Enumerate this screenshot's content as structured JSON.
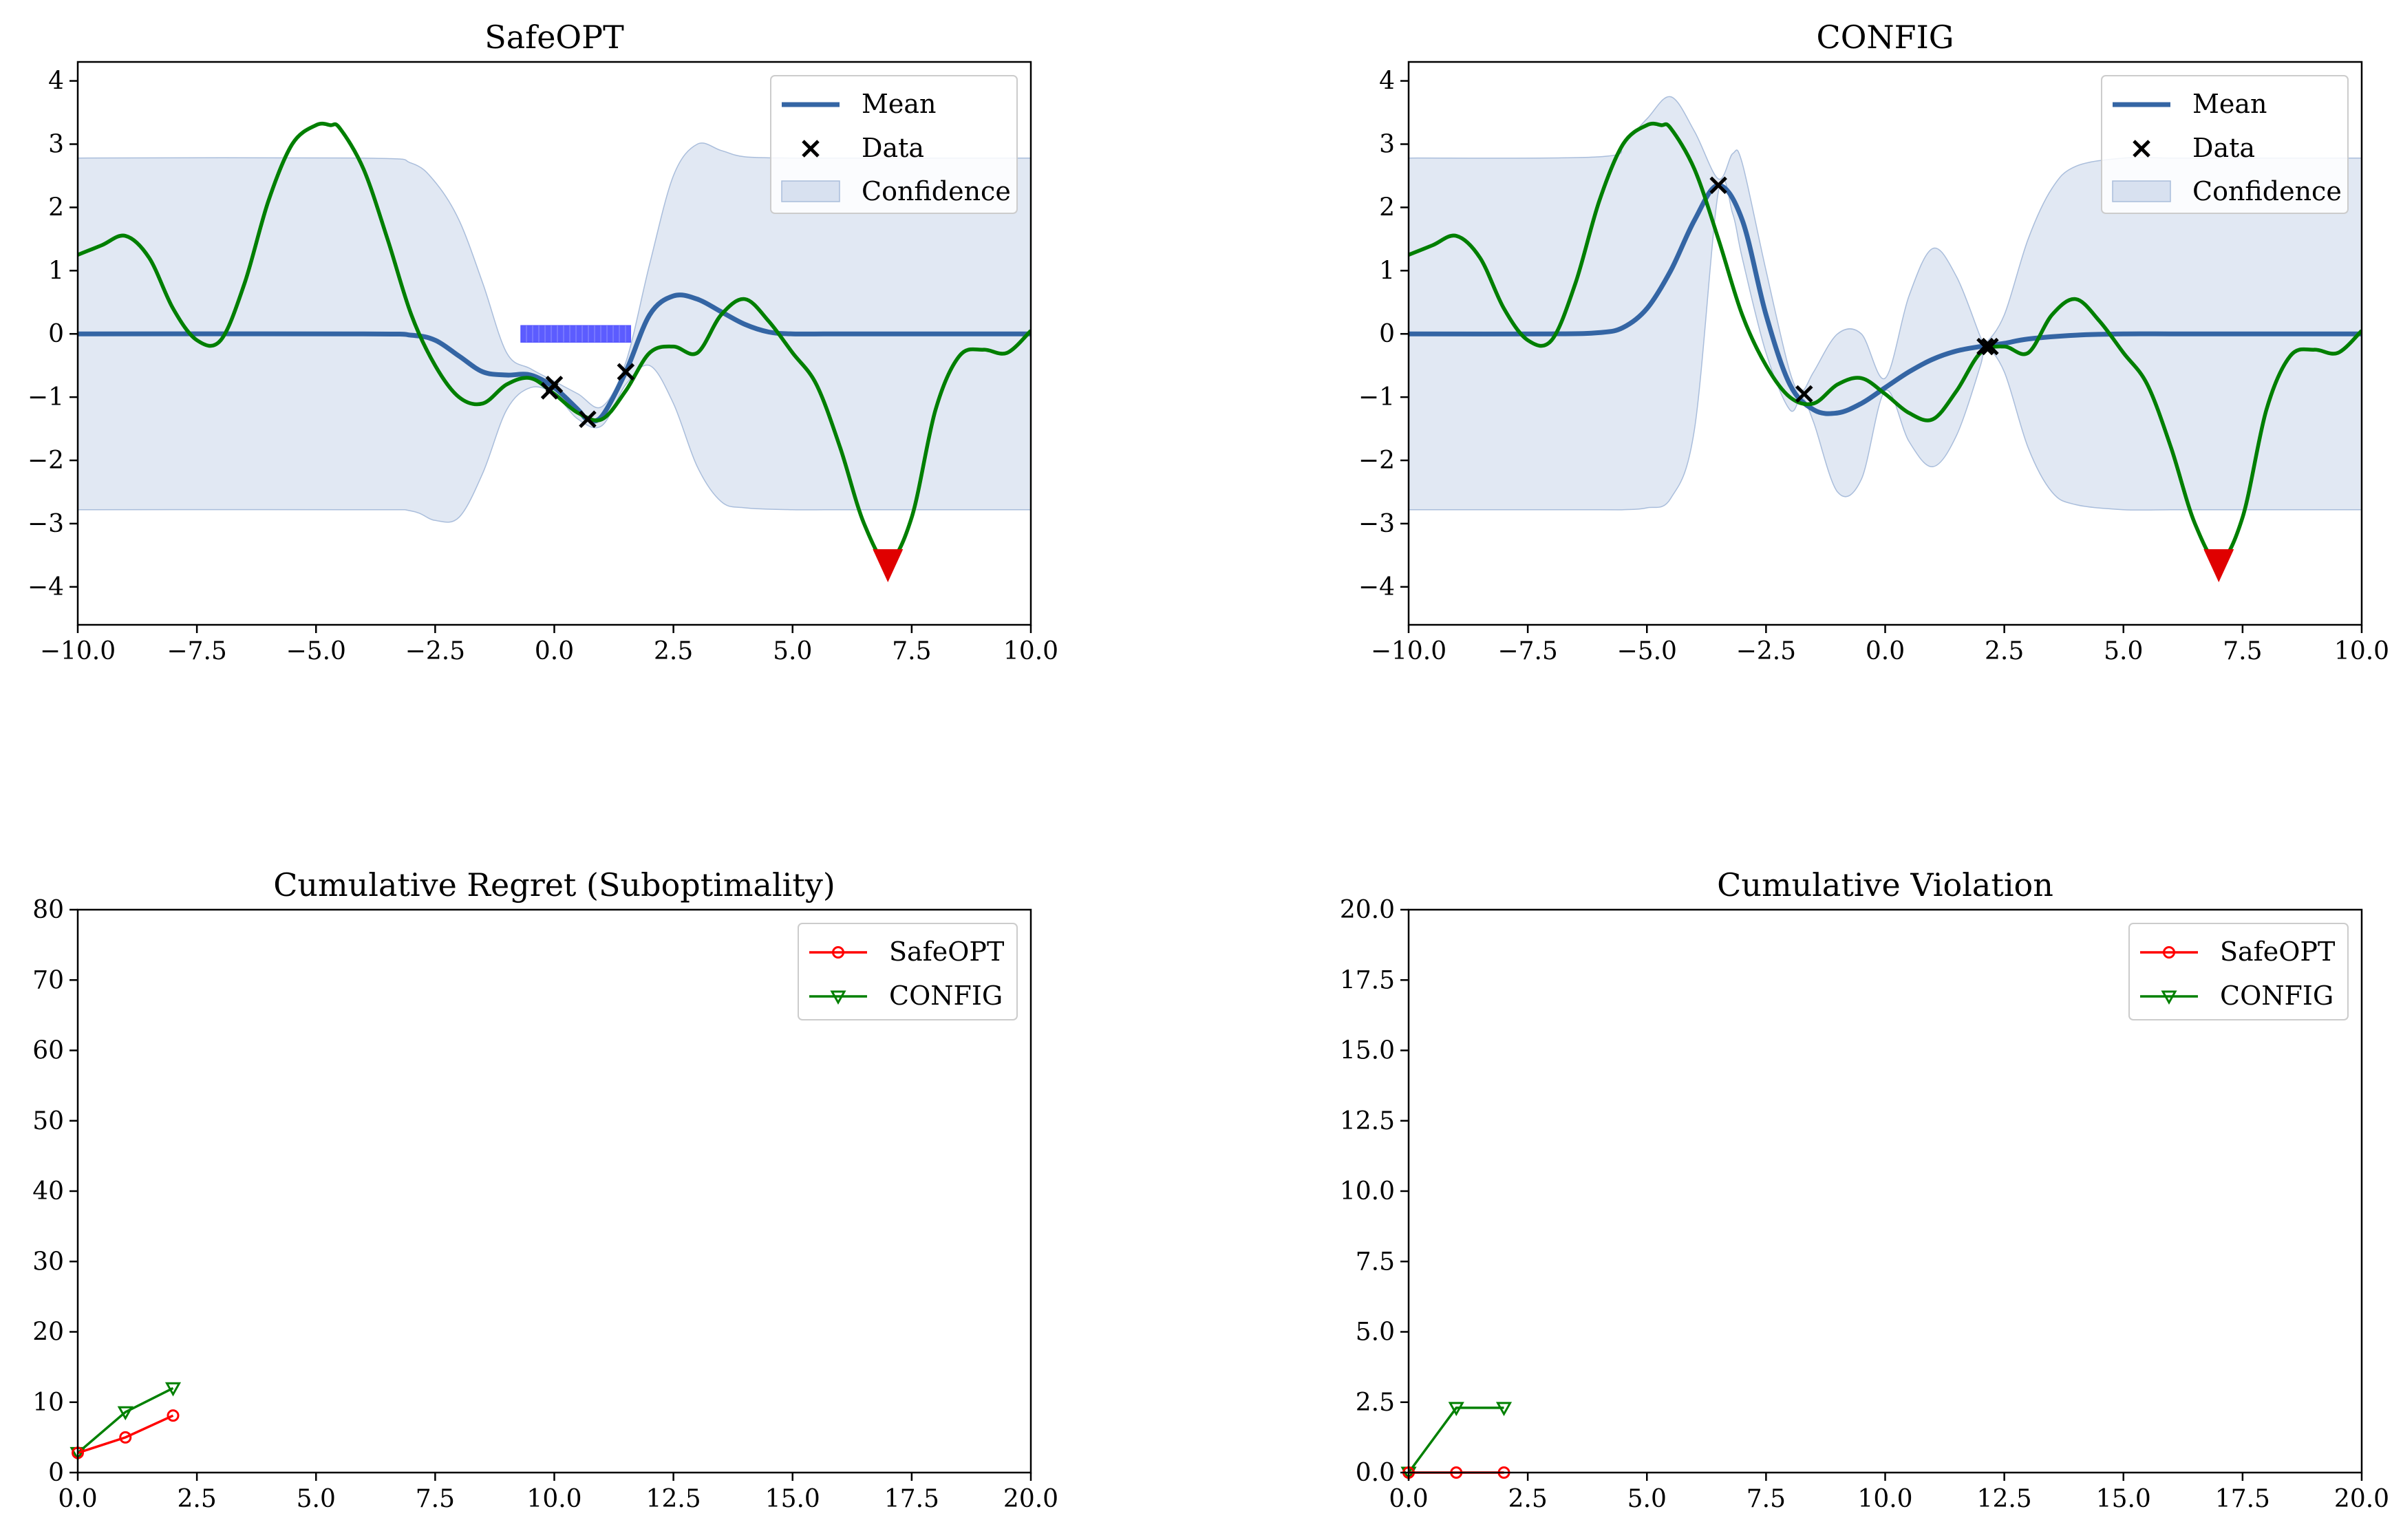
{
  "chart_data": [
    {
      "id": "safeopt",
      "type": "line",
      "title": "SafeOPT",
      "xlim": [
        -10,
        10
      ],
      "ylim": [
        -4.6,
        4.3
      ],
      "xticks": [
        -10,
        -7.5,
        -5,
        -2.5,
        0,
        2.5,
        5,
        7.5,
        10
      ],
      "xtick_labels": [
        "−10.0",
        "−7.5",
        "−5.0",
        "−2.5",
        "0.0",
        "2.5",
        "5.0",
        "7.5",
        "10.0"
      ],
      "yticks": [
        -4,
        -3,
        -2,
        -1,
        0,
        1,
        2,
        3,
        4
      ],
      "ytick_labels": [
        "−4",
        "−3",
        "−2",
        "−1",
        "0",
        "1",
        "2",
        "3",
        "4"
      ],
      "legend": {
        "position": "upper right",
        "entries": [
          "Mean",
          "Data",
          "Confidence"
        ]
      },
      "colors": {
        "mean": "#3465a4",
        "objective": "#007f00",
        "confidence": "#c9d6ea",
        "optimum": "#e00000",
        "safe_set": "#3333ff"
      },
      "objective_curve": {
        "x": [
          -10,
          -9.5,
          -9,
          -8.5,
          -8,
          -7.5,
          -7,
          -6.5,
          -6,
          -5.5,
          -5,
          -4.7,
          -4.5,
          -4,
          -3.5,
          -3,
          -2.5,
          -2,
          -1.5,
          -1,
          -0.5,
          0,
          0.5,
          1,
          1.5,
          2,
          2.5,
          3,
          3.5,
          4,
          4.5,
          5,
          5.5,
          6,
          6.5,
          7,
          7.5,
          8,
          8.5,
          9,
          9.5,
          10
        ],
        "y": [
          1.25,
          1.4,
          1.55,
          1.2,
          0.4,
          -0.1,
          -0.1,
          0.8,
          2.1,
          3.0,
          3.3,
          3.3,
          3.25,
          2.6,
          1.5,
          0.3,
          -0.5,
          -1.0,
          -1.1,
          -0.8,
          -0.7,
          -0.95,
          -1.25,
          -1.35,
          -0.9,
          -0.3,
          -0.2,
          -0.3,
          0.3,
          0.55,
          0.2,
          -0.3,
          -0.8,
          -1.8,
          -3.0,
          -3.6,
          -2.9,
          -1.2,
          -0.35,
          -0.25,
          -0.3,
          0.05
        ]
      },
      "mean_curve": {
        "x": [
          -10,
          -4,
          -3,
          -2.5,
          -2,
          -1.5,
          -1,
          -0.5,
          0,
          0.5,
          0.7,
          1,
          1.5,
          2,
          2.5,
          3,
          3.5,
          4,
          4.5,
          5,
          6,
          7,
          8,
          9,
          10
        ],
        "y": [
          0,
          0,
          -0.02,
          -0.1,
          -0.35,
          -0.6,
          -0.65,
          -0.65,
          -0.85,
          -1.2,
          -1.35,
          -1.3,
          -0.6,
          0.3,
          0.6,
          0.55,
          0.35,
          0.15,
          0.03,
          0,
          0,
          0,
          0,
          0,
          0
        ]
      },
      "confidence_band": {
        "x": [
          -10,
          -4,
          -3,
          -2.5,
          -2,
          -1.5,
          -1,
          -0.5,
          0,
          0.5,
          1,
          1.5,
          2,
          2.5,
          3,
          3.5,
          4,
          5,
          6,
          7,
          8,
          9,
          10
        ],
        "upper": [
          2.78,
          2.78,
          2.7,
          2.4,
          1.8,
          0.8,
          -0.3,
          -0.55,
          -0.75,
          -0.95,
          -1.15,
          -0.45,
          1.1,
          2.5,
          3.0,
          2.9,
          2.8,
          2.78,
          2.78,
          2.78,
          2.78,
          2.78,
          2.78
        ],
        "lower": [
          -2.78,
          -2.78,
          -2.8,
          -2.95,
          -2.9,
          -2.2,
          -1.2,
          -0.85,
          -0.95,
          -1.35,
          -1.45,
          -0.8,
          -0.5,
          -1.1,
          -2.1,
          -2.65,
          -2.75,
          -2.78,
          -2.78,
          -2.78,
          -2.78,
          -2.78,
          -2.78
        ]
      },
      "data_points": {
        "x": [
          0,
          -0.1,
          0.7,
          1.5
        ],
        "y": [
          -0.8,
          -0.9,
          -1.35,
          -0.6
        ]
      },
      "optimum": {
        "x": 7.0,
        "y": -3.6
      },
      "safe_set": {
        "x_start": -0.7,
        "x_end": 1.6,
        "y": 0
      }
    },
    {
      "id": "config",
      "type": "line",
      "title": "CONFIG",
      "xlim": [
        -10,
        10
      ],
      "ylim": [
        -4.6,
        4.3
      ],
      "xticks": [
        -10,
        -7.5,
        -5,
        -2.5,
        0,
        2.5,
        5,
        7.5,
        10
      ],
      "xtick_labels": [
        "−10.0",
        "−7.5",
        "−5.0",
        "−2.5",
        "0.0",
        "2.5",
        "5.0",
        "7.5",
        "10.0"
      ],
      "yticks": [
        -4,
        -3,
        -2,
        -1,
        0,
        1,
        2,
        3,
        4
      ],
      "ytick_labels": [
        "−4",
        "−3",
        "−2",
        "−1",
        "0",
        "1",
        "2",
        "3",
        "4"
      ],
      "legend": {
        "position": "upper right",
        "entries": [
          "Mean",
          "Data",
          "Confidence"
        ]
      },
      "colors": {
        "mean": "#3465a4",
        "objective": "#007f00",
        "confidence": "#c9d6ea",
        "optimum": "#e00000"
      },
      "objective_curve": {
        "x": [
          -10,
          -9.5,
          -9,
          -8.5,
          -8,
          -7.5,
          -7,
          -6.5,
          -6,
          -5.5,
          -5,
          -4.7,
          -4.5,
          -4,
          -3.5,
          -3,
          -2.5,
          -2,
          -1.5,
          -1,
          -0.5,
          0,
          0.5,
          1,
          1.5,
          2,
          2.5,
          3,
          3.5,
          4,
          4.5,
          5,
          5.5,
          6,
          6.5,
          7,
          7.5,
          8,
          8.5,
          9,
          9.5,
          10
        ],
        "y": [
          1.25,
          1.4,
          1.55,
          1.2,
          0.4,
          -0.1,
          -0.1,
          0.8,
          2.1,
          3.0,
          3.3,
          3.3,
          3.25,
          2.6,
          1.5,
          0.3,
          -0.5,
          -1.0,
          -1.1,
          -0.8,
          -0.7,
          -0.95,
          -1.25,
          -1.35,
          -0.9,
          -0.3,
          -0.2,
          -0.3,
          0.3,
          0.55,
          0.2,
          -0.3,
          -0.8,
          -1.8,
          -3.0,
          -3.6,
          -2.9,
          -1.2,
          -0.35,
          -0.25,
          -0.3,
          0.05
        ]
      },
      "mean_curve": {
        "x": [
          -10,
          -7,
          -6,
          -5.5,
          -5,
          -4.5,
          -4,
          -3.5,
          -3,
          -2.5,
          -2,
          -1.5,
          -1,
          -0.5,
          0,
          0.5,
          1,
          1.5,
          2,
          2.5,
          3,
          4,
          5,
          6,
          7,
          8,
          9,
          10
        ],
        "y": [
          0,
          0,
          0.02,
          0.1,
          0.4,
          1.0,
          1.8,
          2.35,
          1.8,
          0.3,
          -0.8,
          -1.2,
          -1.25,
          -1.1,
          -0.85,
          -0.6,
          -0.4,
          -0.27,
          -0.2,
          -0.15,
          -0.08,
          -0.02,
          0,
          0,
          0,
          0,
          0,
          0
        ]
      },
      "confidence_band": {
        "x": [
          -10,
          -6,
          -5.5,
          -5,
          -4.5,
          -4,
          -3.5,
          -3.2,
          -3,
          -2.5,
          -2,
          -1.75,
          -1.5,
          -1,
          -0.5,
          0,
          0.5,
          1,
          1.5,
          2,
          2.1,
          2.5,
          3,
          3.5,
          4,
          5,
          6,
          7,
          8,
          9,
          10
        ],
        "upper": [
          2.78,
          2.8,
          3.0,
          3.4,
          3.75,
          3.2,
          2.45,
          2.85,
          2.7,
          1.0,
          -0.6,
          -0.9,
          -0.6,
          0.0,
          0.0,
          -0.7,
          0.6,
          1.35,
          0.9,
          -0.05,
          -0.15,
          0.3,
          1.5,
          2.3,
          2.65,
          2.78,
          2.78,
          2.78,
          2.78,
          2.78,
          2.78
        ],
        "lower": [
          -2.78,
          -2.78,
          -2.78,
          -2.75,
          -2.6,
          -1.5,
          2.25,
          1.9,
          1.2,
          -0.3,
          -1.2,
          -1.0,
          -1.4,
          -2.5,
          -2.3,
          -0.9,
          -1.7,
          -2.1,
          -1.6,
          -0.5,
          -0.2,
          -0.6,
          -1.8,
          -2.5,
          -2.7,
          -2.78,
          -2.78,
          -2.78,
          -2.78,
          -2.78,
          -2.78
        ]
      },
      "data_points": {
        "x": [
          -3.5,
          -1.7,
          2.1,
          2.2
        ],
        "y": [
          2.35,
          -0.95,
          -0.2,
          -0.2
        ]
      },
      "optimum": {
        "x": 7.0,
        "y": -3.6
      }
    },
    {
      "id": "regret",
      "type": "line",
      "title": "Cumulative Regret (Suboptimality)",
      "xlim": [
        0,
        20
      ],
      "ylim": [
        0,
        80
      ],
      "xticks": [
        0,
        2.5,
        5,
        7.5,
        10,
        12.5,
        15,
        17.5,
        20
      ],
      "xtick_labels": [
        "0.0",
        "2.5",
        "5.0",
        "7.5",
        "10.0",
        "12.5",
        "15.0",
        "17.5",
        "20.0"
      ],
      "yticks": [
        0,
        10,
        20,
        30,
        40,
        50,
        60,
        70,
        80
      ],
      "ytick_labels": [
        "0",
        "10",
        "20",
        "30",
        "40",
        "50",
        "60",
        "70",
        "80"
      ],
      "legend": {
        "position": "upper right",
        "entries": [
          "SafeOPT",
          "CONFIG"
        ]
      },
      "series": [
        {
          "name": "SafeOPT",
          "color": "#ff0000",
          "marker": "circle",
          "x": [
            0,
            1,
            2
          ],
          "values": [
            2.8,
            5.0,
            8.1
          ]
        },
        {
          "name": "CONFIG",
          "color": "#008000",
          "marker": "triangle-down",
          "x": [
            0,
            1,
            2
          ],
          "values": [
            2.8,
            8.6,
            12.0
          ]
        }
      ]
    },
    {
      "id": "violation",
      "type": "line",
      "title": "Cumulative Violation",
      "xlim": [
        0,
        20
      ],
      "ylim": [
        0,
        20
      ],
      "xticks": [
        0,
        2.5,
        5,
        7.5,
        10,
        12.5,
        15,
        17.5,
        20
      ],
      "xtick_labels": [
        "0.0",
        "2.5",
        "5.0",
        "7.5",
        "10.0",
        "12.5",
        "15.0",
        "17.5",
        "20.0"
      ],
      "yticks": [
        0,
        2.5,
        5,
        7.5,
        10,
        12.5,
        15,
        17.5,
        20
      ],
      "ytick_labels": [
        "0.0",
        "2.5",
        "5.0",
        "7.5",
        "10.0",
        "12.5",
        "15.0",
        "17.5",
        "20.0"
      ],
      "legend": {
        "position": "upper right",
        "entries": [
          "SafeOPT",
          "CONFIG"
        ]
      },
      "series": [
        {
          "name": "SafeOPT",
          "color": "#ff0000",
          "marker": "circle",
          "x": [
            0,
            1,
            2
          ],
          "values": [
            0,
            0,
            0
          ]
        },
        {
          "name": "CONFIG",
          "color": "#008000",
          "marker": "triangle-down",
          "x": [
            0,
            1,
            2
          ],
          "values": [
            0,
            2.3,
            2.3
          ]
        }
      ]
    }
  ]
}
